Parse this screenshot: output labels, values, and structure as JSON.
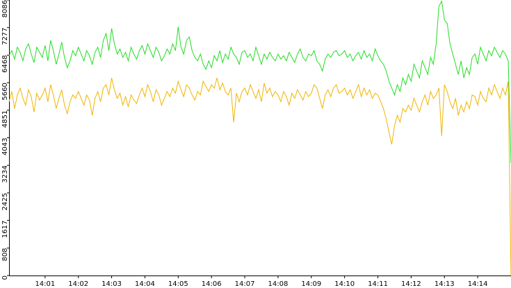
{
  "chart_data": {
    "type": "line",
    "categories": [
      null,
      null,
      null,
      null,
      null,
      null,
      null,
      null,
      null,
      null,
      null,
      null,
      null,
      "14:01",
      null,
      null,
      null,
      null,
      null,
      null,
      null,
      null,
      null,
      null,
      null,
      "14:02",
      null,
      null,
      null,
      null,
      null,
      null,
      null,
      null,
      null,
      null,
      null,
      "14:03",
      null,
      null,
      null,
      null,
      null,
      null,
      null,
      null,
      null,
      null,
      null,
      "14:04",
      null,
      null,
      null,
      null,
      null,
      null,
      null,
      null,
      null,
      null,
      null,
      "14:05",
      null,
      null,
      null,
      null,
      null,
      null,
      null,
      null,
      null,
      null,
      null,
      "14:06",
      null,
      null,
      null,
      null,
      null,
      null,
      null,
      null,
      null,
      null,
      null,
      "14:07",
      null,
      null,
      null,
      null,
      null,
      null,
      null,
      null,
      null,
      null,
      null,
      "14:08",
      null,
      null,
      null,
      null,
      null,
      null,
      null,
      null,
      null,
      null,
      null,
      "14:09",
      null,
      null,
      null,
      null,
      null,
      null,
      null,
      null,
      null,
      null,
      null,
      "14:10",
      null,
      null,
      null,
      null,
      null,
      null,
      null,
      null,
      null,
      null,
      null,
      "14:11",
      null,
      null,
      null,
      null,
      null,
      null,
      null,
      null,
      null,
      null,
      null,
      "14:12",
      null,
      null,
      null,
      null,
      null,
      null,
      null,
      null,
      null,
      null,
      null,
      "14:13",
      null,
      null,
      null,
      null,
      null,
      null,
      null,
      null,
      null,
      null,
      null,
      "14:14",
      null,
      null,
      null,
      null,
      null,
      null,
      null,
      null,
      null,
      null,
      null,
      null
    ],
    "series": [
      {
        "color": "#f0b400",
        "values": [
          5100,
          5400,
          4900,
          5300,
          5500,
          5200,
          5000,
          5450,
          5250,
          4800,
          5350,
          5150,
          5300,
          5500,
          5100,
          5600,
          5300,
          4900,
          5200,
          5450,
          5000,
          4750,
          5100,
          5300,
          5200,
          5400,
          5200,
          5000,
          5300,
          5150,
          4700,
          5200,
          5400,
          5100,
          5500,
          5600,
          5300,
          5800,
          5450,
          5200,
          5350,
          5000,
          5250,
          4950,
          5300,
          5150,
          5050,
          5300,
          5500,
          5250,
          5600,
          5400,
          5100,
          5450,
          5300,
          5000,
          5200,
          5400,
          5250,
          5500,
          5350,
          5700,
          5450,
          5250,
          5600,
          5500,
          5300,
          5150,
          5400,
          5300,
          5700,
          5550,
          5400,
          5600,
          5500,
          5800,
          5450,
          5650,
          5400,
          5300,
          5500,
          4500,
          5350,
          5100,
          5400,
          5500,
          5300,
          5600,
          5400,
          5200,
          5450,
          5100,
          5650,
          5350,
          5500,
          5250,
          5400,
          5300,
          5100,
          5400,
          5250,
          5000,
          5350,
          5200,
          5450,
          5300,
          5150,
          5400,
          5250,
          5350,
          5600,
          5500,
          5200,
          4900,
          5300,
          5450,
          5250,
          5500,
          5600,
          5350,
          5400,
          5500,
          5300,
          5450,
          5200,
          5400,
          5600,
          5250,
          5500,
          5300,
          5450,
          5200,
          5350,
          5300,
          5100,
          4900,
          4600,
          4200,
          3850,
          4400,
          4700,
          4500,
          4900,
          4800,
          5000,
          4850,
          5200,
          5000,
          4800,
          5100,
          5300,
          5000,
          5400,
          5200,
          5300,
          5500,
          4100,
          5600,
          5400,
          5100,
          4900,
          5200,
          4700,
          5000,
          4800,
          5100,
          4900,
          5300,
          5250,
          5000,
          5400,
          5200,
          5100,
          5500,
          5300,
          5600,
          5400,
          5200,
          5500,
          5300,
          5700,
          0
        ]
      },
      {
        "color": "#22dd22",
        "values": [
          6450,
          6600,
          6350,
          6700,
          6550,
          6300,
          6650,
          6800,
          6500,
          6250,
          6700,
          6550,
          6400,
          6750,
          6300,
          6900,
          6600,
          6200,
          6500,
          6850,
          6400,
          6100,
          6300,
          6600,
          6450,
          6700,
          6500,
          6300,
          6600,
          6450,
          6200,
          6550,
          6700,
          6400,
          6900,
          7100,
          6600,
          7250,
          6800,
          6500,
          6650,
          6400,
          6550,
          6300,
          6700,
          6500,
          6350,
          6600,
          6750,
          6500,
          6800,
          6600,
          6400,
          6700,
          6550,
          6300,
          6450,
          6650,
          6500,
          6800,
          6600,
          7300,
          6700,
          6500,
          6900,
          7000,
          6600,
          6400,
          6300,
          6500,
          6200,
          6050,
          6300,
          6100,
          6450,
          6300,
          6600,
          6250,
          6500,
          6350,
          6700,
          6500,
          6400,
          6200,
          6550,
          6600,
          6400,
          6500,
          6300,
          6700,
          6450,
          6200,
          6500,
          6350,
          6550,
          6400,
          6300,
          6500,
          6350,
          6450,
          6300,
          6550,
          6400,
          6250,
          6500,
          6650,
          6400,
          6300,
          6500,
          6450,
          6600,
          6300,
          6200,
          6000,
          6350,
          6500,
          6400,
          6550,
          6600,
          6450,
          6500,
          6600,
          6400,
          6500,
          6300,
          6450,
          6550,
          6350,
          6600,
          6400,
          6500,
          6300,
          6650,
          6450,
          6300,
          6200,
          6000,
          5700,
          5500,
          5300,
          5600,
          5400,
          5800,
          5600,
          5900,
          5700,
          6200,
          6000,
          5800,
          6300,
          6100,
          5900,
          6400,
          6200,
          6800,
          7900,
          8050,
          7500,
          7400,
          6800,
          6500,
          6200,
          5900,
          6300,
          5800,
          6100,
          5900,
          6400,
          6500,
          6200,
          6700,
          6500,
          6300,
          6600,
          6450,
          6700,
          6550,
          6400,
          6600,
          6500,
          6300,
          3300
        ]
      }
    ],
    "ylim": [
      0,
      8086
    ],
    "yticks": [
      0,
      808,
      1617,
      2425,
      3234,
      4043,
      4851,
      5660,
      6468,
      7277,
      8086
    ]
  }
}
